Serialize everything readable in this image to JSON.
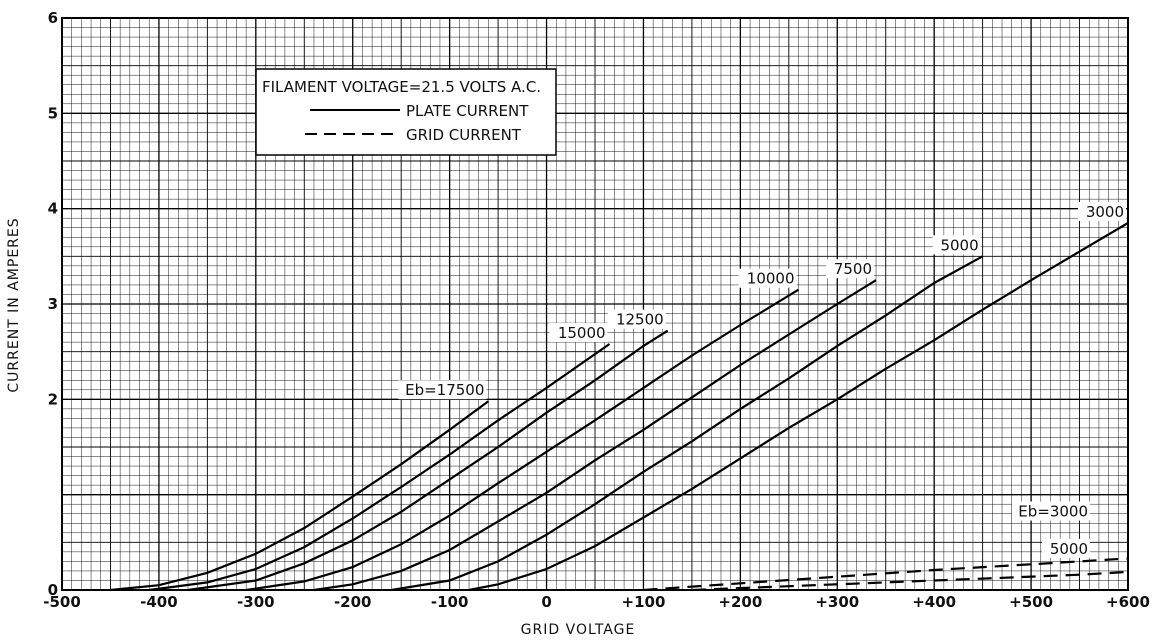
{
  "chart_data": {
    "type": "line",
    "title": "",
    "xlabel": "GRID VOLTAGE",
    "ylabel": "CURRENT IN AMPERES",
    "xlim": [
      -500,
      600
    ],
    "ylim": [
      0,
      6
    ],
    "grid": true,
    "x_ticks": [
      "-500",
      "-400",
      "-300",
      "-200",
      "-100",
      "0",
      "+100",
      "+200",
      "+300",
      "+400",
      "+500",
      "+600"
    ],
    "y_ticks": [
      "0",
      "2",
      "3",
      "4",
      "5",
      "6"
    ],
    "legend": {
      "placement": "top-left",
      "heading": "FILAMENT VOLTAGE=21.5 VOLTS A.C.",
      "entries": [
        {
          "label": "PLATE CURRENT",
          "style": "solid"
        },
        {
          "label": "GRID CURRENT",
          "style": "dashed"
        }
      ]
    },
    "series": [
      {
        "label": "Eb=17500",
        "kind": "plate",
        "points": [
          [
            -450,
            0
          ],
          [
            -400,
            0.05
          ],
          [
            -350,
            0.18
          ],
          [
            -300,
            0.38
          ],
          [
            -250,
            0.65
          ],
          [
            -200,
            0.98
          ],
          [
            -150,
            1.32
          ],
          [
            -100,
            1.68
          ],
          [
            -60,
            1.98
          ]
        ]
      },
      {
        "label": "15000",
        "kind": "plate",
        "points": [
          [
            -410,
            0
          ],
          [
            -350,
            0.08
          ],
          [
            -300,
            0.22
          ],
          [
            -250,
            0.45
          ],
          [
            -200,
            0.75
          ],
          [
            -150,
            1.08
          ],
          [
            -100,
            1.42
          ],
          [
            -50,
            1.78
          ],
          [
            0,
            2.12
          ],
          [
            65,
            2.58
          ]
        ]
      },
      {
        "label": "12500",
        "kind": "plate",
        "points": [
          [
            -370,
            0
          ],
          [
            -300,
            0.1
          ],
          [
            -250,
            0.28
          ],
          [
            -200,
            0.52
          ],
          [
            -150,
            0.82
          ],
          [
            -100,
            1.16
          ],
          [
            -50,
            1.5
          ],
          [
            0,
            1.86
          ],
          [
            50,
            2.2
          ],
          [
            100,
            2.56
          ],
          [
            125,
            2.72
          ]
        ]
      },
      {
        "label": "10000",
        "kind": "plate",
        "points": [
          [
            -310,
            0
          ],
          [
            -250,
            0.09
          ],
          [
            -200,
            0.24
          ],
          [
            -150,
            0.48
          ],
          [
            -100,
            0.78
          ],
          [
            -50,
            1.12
          ],
          [
            0,
            1.45
          ],
          [
            50,
            1.78
          ],
          [
            100,
            2.12
          ],
          [
            150,
            2.46
          ],
          [
            200,
            2.78
          ],
          [
            260,
            3.15
          ]
        ]
      },
      {
        "label": "7500",
        "kind": "plate",
        "points": [
          [
            -240,
            0
          ],
          [
            -200,
            0.06
          ],
          [
            -150,
            0.2
          ],
          [
            -100,
            0.42
          ],
          [
            -50,
            0.72
          ],
          [
            0,
            1.02
          ],
          [
            50,
            1.36
          ],
          [
            100,
            1.68
          ],
          [
            150,
            2.02
          ],
          [
            200,
            2.36
          ],
          [
            250,
            2.68
          ],
          [
            300,
            3.0
          ],
          [
            340,
            3.25
          ]
        ]
      },
      {
        "label": "5000",
        "kind": "plate",
        "points": [
          [
            -160,
            0
          ],
          [
            -100,
            0.1
          ],
          [
            -50,
            0.3
          ],
          [
            0,
            0.58
          ],
          [
            50,
            0.9
          ],
          [
            100,
            1.24
          ],
          [
            150,
            1.56
          ],
          [
            200,
            1.9
          ],
          [
            250,
            2.22
          ],
          [
            300,
            2.56
          ],
          [
            350,
            2.88
          ],
          [
            400,
            3.22
          ],
          [
            450,
            3.5
          ]
        ]
      },
      {
        "label": "3000",
        "kind": "plate",
        "points": [
          [
            -80,
            0
          ],
          [
            -50,
            0.06
          ],
          [
            0,
            0.22
          ],
          [
            50,
            0.46
          ],
          [
            100,
            0.76
          ],
          [
            150,
            1.06
          ],
          [
            200,
            1.38
          ],
          [
            250,
            1.7
          ],
          [
            300,
            2.0
          ],
          [
            350,
            2.32
          ],
          [
            400,
            2.62
          ],
          [
            450,
            2.94
          ],
          [
            500,
            3.25
          ],
          [
            550,
            3.55
          ],
          [
            600,
            3.85
          ]
        ]
      },
      {
        "label": "Eb=3000",
        "kind": "grid",
        "points": [
          [
            100,
            0
          ],
          [
            200,
            0.07
          ],
          [
            300,
            0.14
          ],
          [
            400,
            0.21
          ],
          [
            500,
            0.27
          ],
          [
            600,
            0.33
          ]
        ]
      },
      {
        "label": "5000",
        "kind": "grid",
        "points": [
          [
            150,
            0
          ],
          [
            250,
            0.04
          ],
          [
            350,
            0.08
          ],
          [
            450,
            0.12
          ],
          [
            550,
            0.16
          ],
          [
            600,
            0.19
          ]
        ]
      }
    ]
  }
}
